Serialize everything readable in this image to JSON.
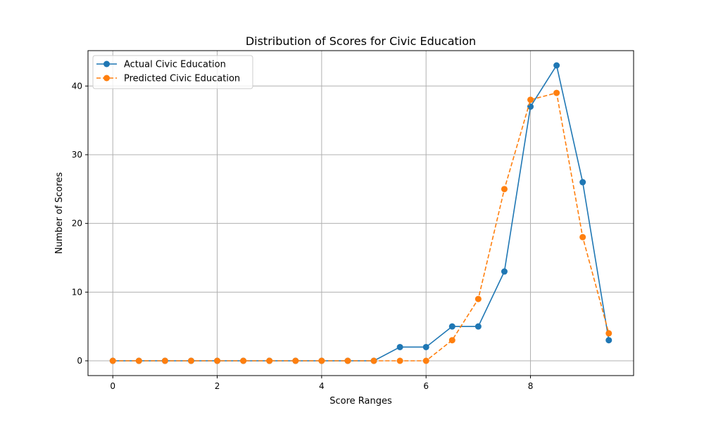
{
  "chart_data": {
    "type": "line",
    "title": "Distribution of Scores for Civic Education",
    "xlabel": "Score Ranges",
    "ylabel": "Number of Scores",
    "xlim": [
      -0.475,
      9.975
    ],
    "ylim": [
      -2.15,
      45.15
    ],
    "xticks": [
      0,
      2,
      4,
      6,
      8
    ],
    "yticks": [
      0,
      10,
      20,
      30,
      40
    ],
    "grid": true,
    "legend_position": "top-left",
    "x": [
      0,
      0.5,
      1,
      1.5,
      2,
      2.5,
      3,
      3.5,
      4,
      4.5,
      5,
      5.5,
      6,
      6.5,
      7,
      7.5,
      8,
      8.5,
      9,
      9.5
    ],
    "series": [
      {
        "name": "Actual Civic Education",
        "color": "#1f77b4",
        "style": "solid",
        "values": [
          0,
          0,
          0,
          0,
          0,
          0,
          0,
          0,
          0,
          0,
          0,
          2,
          2,
          5,
          5,
          13,
          37,
          43,
          26,
          3
        ]
      },
      {
        "name": "Predicted Civic Education",
        "color": "#ff7f0e",
        "style": "dashed",
        "values": [
          0,
          0,
          0,
          0,
          0,
          0,
          0,
          0,
          0,
          0,
          0,
          0,
          0,
          3,
          9,
          25,
          38,
          39,
          18,
          4
        ]
      }
    ]
  }
}
